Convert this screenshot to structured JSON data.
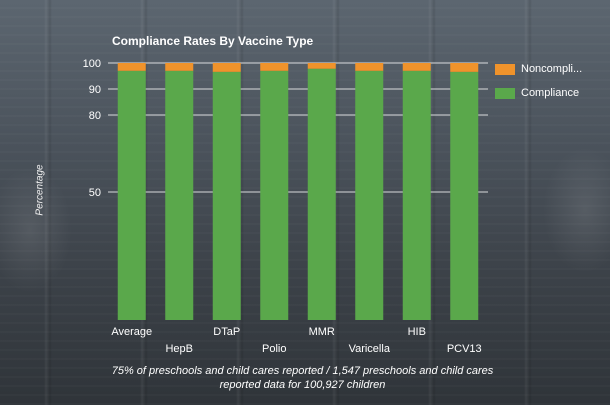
{
  "chart_data": {
    "type": "bar",
    "stacked": true,
    "title": "Compliance Rates By Vaccine Type",
    "xlabel": "",
    "ylabel": "Percentage",
    "categories": [
      "Average",
      "HepB",
      "DTaP",
      "Polio",
      "MMR",
      "Varicella",
      "HIB",
      "PCV13"
    ],
    "series": [
      {
        "name": "Compliance",
        "color": "#5aa84b",
        "values": [
          97.0,
          97.0,
          96.6,
          97.0,
          97.8,
          97.0,
          97.0,
          96.6
        ]
      },
      {
        "name": "Noncompli...",
        "color": "#f0932b",
        "values": [
          3.0,
          3.0,
          3.4,
          3.0,
          2.2,
          3.0,
          3.0,
          3.4
        ]
      }
    ],
    "yticks": [
      "50",
      "80",
      "90",
      "100"
    ],
    "ylim": [
      0,
      100
    ],
    "legend_position": "top-right",
    "grid": true
  },
  "caption": "75% of preschools and child cares reported / 1,547 preschools and child cares reported data for 100,927 children"
}
